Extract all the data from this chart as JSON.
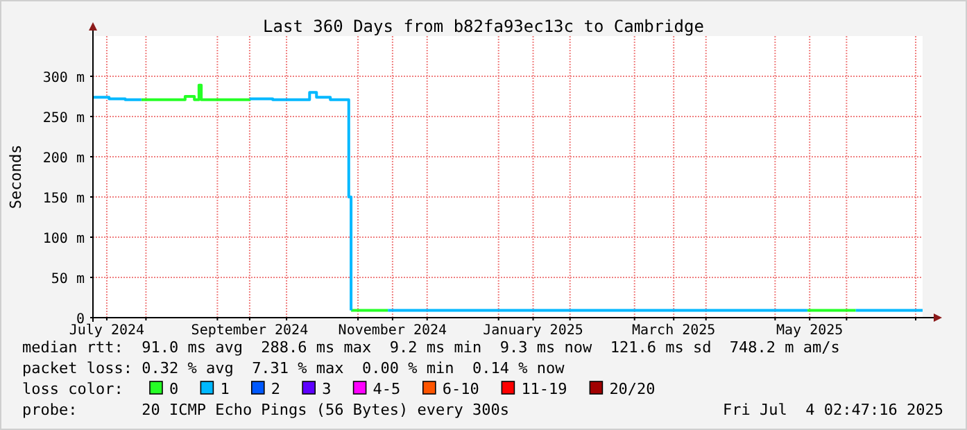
{
  "chart_data": {
    "type": "step",
    "title": "Last 360 Days from b82fa93ec13c to Cambridge",
    "ylabel": "Seconds",
    "legend_title": "loss color:",
    "legend": "bottom",
    "grid": true,
    "marker": "none",
    "line_style": "solid",
    "xlim": [
      "2024-07-09",
      "2025-07-04"
    ],
    "xticks": [
      {
        "value": "2024-07-15",
        "label": "July 2024"
      },
      {
        "value": "2024-08-01",
        "label": null
      },
      {
        "value": "2024-09-01",
        "label": null
      },
      {
        "value": "2024-09-15",
        "label": "September 2024"
      },
      {
        "value": "2024-10-01",
        "label": null
      },
      {
        "value": "2024-11-01",
        "label": null
      },
      {
        "value": "2024-11-16",
        "label": "November 2024"
      },
      {
        "value": "2024-12-01",
        "label": null
      },
      {
        "value": "2025-01-01",
        "label": null
      },
      {
        "value": "2025-01-16",
        "label": "January 2025"
      },
      {
        "value": "2025-02-01",
        "label": null
      },
      {
        "value": "2025-03-01",
        "label": null
      },
      {
        "value": "2025-03-18",
        "label": "March 2025"
      },
      {
        "value": "2025-04-01",
        "label": null
      },
      {
        "value": "2025-05-01",
        "label": null
      },
      {
        "value": "2025-05-16",
        "label": "May 2025"
      },
      {
        "value": "2025-06-01",
        "label": null
      },
      {
        "value": "2025-07-01",
        "label": null
      }
    ],
    "ylim": [
      0,
      350
    ],
    "yticks": [
      0,
      {
        "value": 50,
        "label": "50 m"
      },
      {
        "value": 100,
        "label": "100 m"
      },
      {
        "value": 150,
        "label": "150 m"
      },
      {
        "value": 200,
        "label": "200 m"
      },
      {
        "value": 250,
        "label": "250 m"
      },
      {
        "value": 300,
        "label": "300 m"
      }
    ],
    "x": [
      "2024-07-09",
      "2024-07-16",
      "2024-07-23",
      "2024-07-30",
      "2024-08-06",
      "2024-08-13",
      "2024-08-18",
      "2024-08-22",
      "2024-08-24",
      "2024-08-25",
      "2024-09-05",
      "2024-09-15",
      "2024-09-25",
      "2024-10-05",
      "2024-10-11",
      "2024-10-14",
      "2024-10-20",
      "2024-10-28",
      "2024-10-29",
      "2024-11-05",
      "2024-11-14",
      "2024-12-10",
      "2025-01-15",
      "2025-02-20",
      "2025-03-25",
      "2025-05-01",
      "2025-05-15",
      "2025-05-25",
      "2025-06-05",
      "2025-06-20",
      "2025-07-04"
    ],
    "series": [
      {
        "name": "0",
        "color": "#26ff26",
        "values": [
          null,
          null,
          null,
          271,
          271,
          271,
          275,
          271,
          289,
          271,
          271,
          272,
          null,
          null,
          null,
          null,
          null,
          null,
          9,
          9,
          9,
          null,
          null,
          null,
          null,
          null,
          9,
          9,
          9,
          null,
          null
        ]
      },
      {
        "name": "1",
        "color": "#00b8ff",
        "values": [
          274,
          272,
          271,
          271,
          null,
          null,
          null,
          null,
          null,
          null,
          null,
          272,
          271,
          271,
          280,
          274,
          271,
          150,
          9,
          null,
          9,
          9,
          9,
          9,
          9,
          9,
          9,
          null,
          9,
          9,
          9
        ]
      },
      {
        "name": "2",
        "color": "#0059ff",
        "values": [
          null,
          null,
          null,
          null,
          null,
          null,
          null,
          null,
          null,
          null,
          null,
          null,
          null,
          null,
          null,
          null,
          null,
          null,
          null,
          null,
          null,
          null,
          null,
          null,
          null,
          null,
          null,
          null,
          null,
          null,
          null
        ]
      },
      {
        "name": "3",
        "color": "#5e00ff",
        "values": [
          null,
          null,
          null,
          null,
          null,
          null,
          null,
          null,
          null,
          null,
          null,
          null,
          null,
          null,
          null,
          null,
          null,
          null,
          null,
          null,
          null,
          null,
          null,
          null,
          null,
          null,
          null,
          null,
          null,
          null,
          null
        ]
      },
      {
        "name": "4-5",
        "color": "#ff00ff",
        "values": [
          null,
          null,
          null,
          null,
          null,
          null,
          null,
          null,
          null,
          null,
          null,
          null,
          null,
          null,
          null,
          null,
          null,
          null,
          null,
          null,
          null,
          null,
          null,
          null,
          null,
          null,
          null,
          null,
          null,
          null,
          null
        ]
      },
      {
        "name": "6-10",
        "color": "#ff5500",
        "values": [
          null,
          null,
          null,
          null,
          null,
          null,
          null,
          null,
          null,
          null,
          null,
          null,
          null,
          null,
          null,
          null,
          null,
          null,
          null,
          null,
          null,
          null,
          null,
          null,
          null,
          null,
          null,
          null,
          null,
          null,
          null
        ]
      },
      {
        "name": "11-19",
        "color": "#ff0000",
        "values": [
          null,
          null,
          null,
          null,
          null,
          null,
          null,
          null,
          null,
          null,
          null,
          null,
          null,
          null,
          null,
          null,
          null,
          null,
          null,
          null,
          null,
          null,
          null,
          null,
          null,
          null,
          null,
          null,
          null,
          null,
          null
        ]
      },
      {
        "name": "20/20",
        "color": "#a10000",
        "values": [
          null,
          null,
          null,
          null,
          null,
          null,
          null,
          null,
          null,
          null,
          null,
          null,
          null,
          null,
          null,
          null,
          null,
          null,
          null,
          null,
          null,
          null,
          null,
          null,
          null,
          null,
          null,
          null,
          null,
          null,
          null
        ]
      }
    ],
    "annotations": [
      "median rtt:  91.0 ms avg  288.6 ms max  9.2 ms min  9.3 ms now  121.6 ms sd  748.2 m am/s",
      "packet loss: 0.32 % avg  7.31 % max  0.00 % min  0.14 % now",
      "probe:       20 ICMP Echo Pings (56 Bytes) every 300s",
      "Fri Jul  4 02:47:16 2025"
    ]
  }
}
